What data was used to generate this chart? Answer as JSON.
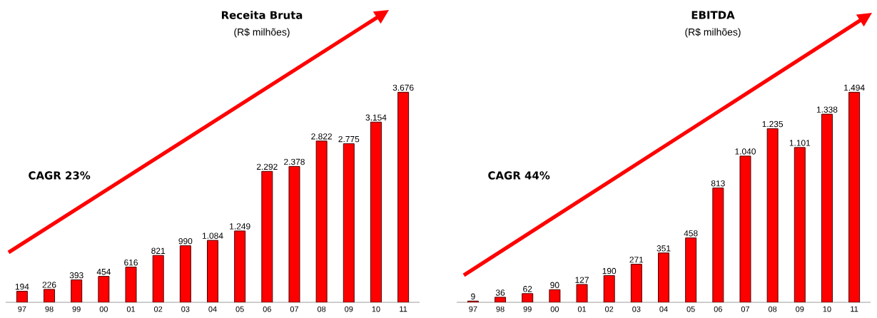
{
  "chart_data": [
    {
      "type": "bar",
      "title": "Receita Bruta",
      "subtitle": "(R$ milhões)",
      "categories": [
        "97",
        "98",
        "99",
        "00",
        "01",
        "02",
        "03",
        "04",
        "05",
        "06",
        "07",
        "08",
        "09",
        "10",
        "11"
      ],
      "values": [
        194,
        226,
        393,
        454,
        616,
        821,
        990,
        1084,
        1249,
        2292,
        2378,
        2822,
        2775,
        3154,
        3676
      ],
      "value_labels": [
        "194",
        "226",
        "393",
        "454",
        "616",
        "821",
        "990",
        "1.084",
        "1.249",
        "2.292",
        "2.378",
        "2.822",
        "2.775",
        "3.154",
        "3.676"
      ],
      "color": "#ff0000",
      "annotations": [
        "CAGR 23%"
      ]
    },
    {
      "type": "bar",
      "title": "EBITDA",
      "subtitle": "(R$ milhões)",
      "categories": [
        "97",
        "98",
        "99",
        "00",
        "01",
        "02",
        "03",
        "04",
        "05",
        "06",
        "07",
        "08",
        "09",
        "10",
        "11"
      ],
      "values": [
        9,
        36,
        62,
        90,
        127,
        190,
        271,
        351,
        458,
        813,
        1040,
        1235,
        1101,
        1338,
        1494
      ],
      "value_labels": [
        "9",
        "36",
        "62",
        "90",
        "127",
        "190",
        "271",
        "351",
        "458",
        "813",
        "1.040",
        "1.235",
        "1.101",
        "1.338",
        "1.494"
      ],
      "color": "#ff0000",
      "annotations": [
        "CAGR 44%"
      ]
    }
  ]
}
